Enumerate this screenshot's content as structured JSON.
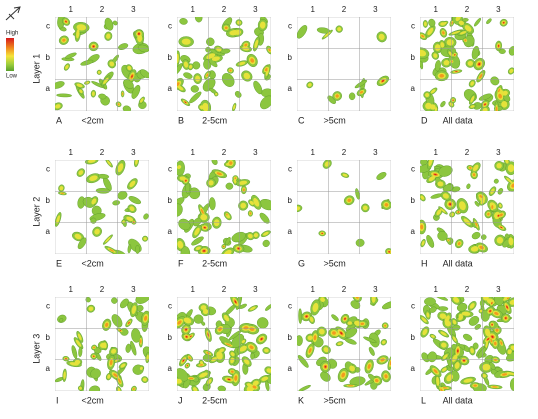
{
  "legend": {
    "high": "High",
    "low": "Low"
  },
  "column_labels": [
    "1",
    "2",
    "3"
  ],
  "row_labels": [
    "c",
    "b",
    "a"
  ],
  "layers": [
    "Layer 1",
    "Layer 2",
    "Layer 3"
  ],
  "panels": [
    {
      "letter": "A",
      "label": "<2cm"
    },
    {
      "letter": "B",
      "label": "2-5cm"
    },
    {
      "letter": "C",
      "label": ">5cm"
    },
    {
      "letter": "D",
      "label": "All data"
    },
    {
      "letter": "E",
      "label": "<2cm"
    },
    {
      "letter": "F",
      "label": "2-5cm"
    },
    {
      "letter": "G",
      "label": ">5cm"
    },
    {
      "letter": "H",
      "label": "All data"
    },
    {
      "letter": "I",
      "label": "<2cm"
    },
    {
      "letter": "J",
      "label": "2-5cm"
    },
    {
      "letter": "K",
      "label": ">5cm"
    },
    {
      "letter": "L",
      "label": "All data"
    }
  ]
}
